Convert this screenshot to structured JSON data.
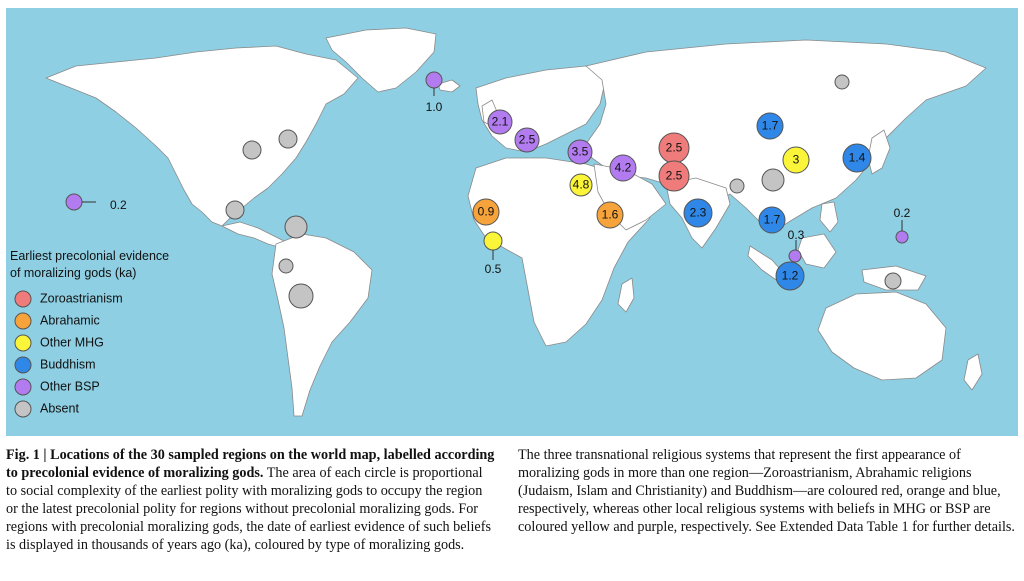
{
  "map": {
    "ocean_color": "#8ecfe3",
    "land_color": "#ffffff",
    "border_color": "#8a8a8a",
    "legend": {
      "title_line1": "Earliest precolonial evidence",
      "title_line2": "of moralizing gods (ka)",
      "items": [
        {
          "label": "Zoroastrianism",
          "color": "#ef7b7b"
        },
        {
          "label": "Abrahamic",
          "color": "#f5a33a"
        },
        {
          "label": "Other MHG",
          "color": "#fbf53a"
        },
        {
          "label": "Buddhism",
          "color": "#2f88e8"
        },
        {
          "label": "Other BSP",
          "color": "#b27cf0"
        },
        {
          "label": "Absent",
          "color": "#c4c4c4"
        }
      ]
    },
    "regions": [
      {
        "type": "Other BSP",
        "label": "1.0",
        "callout": true
      },
      {
        "type": "Other BSP",
        "label": "2.1"
      },
      {
        "type": "Other BSP",
        "label": "2.5"
      },
      {
        "type": "Other BSP",
        "label": "3.5"
      },
      {
        "type": "Other BSP",
        "label": "4.2"
      },
      {
        "type": "Zoroastrianism",
        "label": "2.5"
      },
      {
        "type": "Zoroastrianism",
        "label": "2.5"
      },
      {
        "type": "Buddhism",
        "label": "1.7"
      },
      {
        "type": "Other MHG",
        "label": "3"
      },
      {
        "type": "Buddhism",
        "label": "1.4"
      },
      {
        "type": "Other MHG",
        "label": "4.8"
      },
      {
        "type": "Abrahamic",
        "label": "0.9"
      },
      {
        "type": "Abrahamic",
        "label": "1.6"
      },
      {
        "type": "Other MHG",
        "label": "0.5",
        "callout": true
      },
      {
        "type": "Buddhism",
        "label": "2.3"
      },
      {
        "type": "Buddhism",
        "label": "1.7"
      },
      {
        "type": "Other BSP",
        "label": "0.3",
        "callout": true
      },
      {
        "type": "Buddhism",
        "label": "1.2"
      },
      {
        "type": "Other BSP",
        "label": "0.2",
        "callout": true
      },
      {
        "type": "Other BSP",
        "label": "0.2",
        "callout": true
      },
      {
        "type": "Absent",
        "label": ""
      },
      {
        "type": "Absent",
        "label": ""
      },
      {
        "type": "Absent",
        "label": ""
      },
      {
        "type": "Absent",
        "label": ""
      },
      {
        "type": "Absent",
        "label": ""
      },
      {
        "type": "Absent",
        "label": ""
      },
      {
        "type": "Absent",
        "label": ""
      },
      {
        "type": "Absent",
        "label": ""
      },
      {
        "type": "Absent",
        "label": ""
      },
      {
        "type": "Absent",
        "label": ""
      }
    ]
  },
  "caption": {
    "fig_heading": "Fig. 1 | Locations of the 30 sampled regions on the world map, labelled according to precolonial evidence of moralizing gods.",
    "left_body": " The area of each circle is proportional to social complexity of the earliest polity with moralizing gods to occupy the region or the latest precolonial polity for regions without precolonial moralizing gods. For regions with precolonial moralizing gods, the date of earliest evidence of such beliefs is displayed in thousands of years ago (ka), coloured by type of moralizing gods.",
    "right_body": "The three transnational religious systems that represent the first appearance of moralizing gods in more than one region—Zoroastrianism, Abrahamic religions (Judaism, Islam and Christianity) and Buddhism—are coloured red, orange and blue, respectively, whereas other local religious systems with beliefs in MHG or BSP are coloured yellow and purple, respectively. See Extended Data Table 1 for further details."
  }
}
